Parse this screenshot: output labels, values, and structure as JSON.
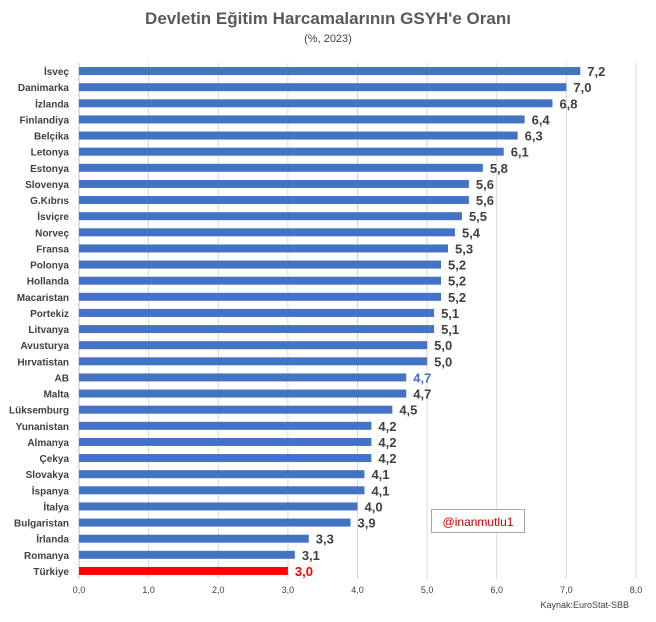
{
  "chart_data": {
    "type": "bar",
    "orientation": "horizontal",
    "title": "Devletin Eğitim Harcamalarının GSYH'e Oranı",
    "subtitle": "(%, 2023)",
    "categories": [
      "İsveç",
      "Danimarka",
      "İzlanda",
      "Finlandiya",
      "Belçika",
      "Letonya",
      "Estonya",
      "Slovenya",
      "G.Kıbrıs",
      "İsviçre",
      "Norveç",
      "Fransa",
      "Polonya",
      "Hollanda",
      "Macaristan",
      "Portekiz",
      "Litvanya",
      "Avusturya",
      "Hırvatistan",
      "AB",
      "Malta",
      "Lüksemburg",
      "Yunanistan",
      "Almanya",
      "Çekya",
      "Slovakya",
      "İspanya",
      "İtalya",
      "Bulgaristan",
      "İrlanda",
      "Romanya",
      "Türkiye"
    ],
    "values": [
      7.2,
      7.0,
      6.8,
      6.4,
      6.3,
      6.1,
      5.8,
      5.6,
      5.6,
      5.5,
      5.4,
      5.3,
      5.2,
      5.2,
      5.2,
      5.1,
      5.1,
      5.0,
      5.0,
      4.7,
      4.7,
      4.5,
      4.2,
      4.2,
      4.2,
      4.1,
      4.1,
      4.0,
      3.9,
      3.3,
      3.1,
      3.0
    ],
    "value_labels": [
      "7,2",
      "7,0",
      "6,8",
      "6,4",
      "6,3",
      "6,1",
      "5,8",
      "5,6",
      "5,6",
      "5,5",
      "5,4",
      "5,3",
      "5,2",
      "5,2",
      "5,2",
      "5,1",
      "5,1",
      "5,0",
      "5,0",
      "4,7",
      "4,7",
      "4,5",
      "4,2",
      "4,2",
      "4,2",
      "4,1",
      "4,1",
      "4,0",
      "3,9",
      "3,3",
      "3,1",
      "3,0"
    ],
    "xlim": [
      0,
      8
    ],
    "xticks": [
      "0,0",
      "1,0",
      "2,0",
      "3,0",
      "4,0",
      "5,0",
      "6,0",
      "7,0",
      "8,0"
    ],
    "grid": "vertical",
    "colors": {
      "default": "#4472c4",
      "highlight": "#ff0000",
      "ab_label": "#4472c4",
      "label": "#404040"
    },
    "highlight_categories": [
      "Türkiye"
    ]
  },
  "watermark": "@inanmutlu1",
  "source": "Kaynak:EuroStat-SBB"
}
